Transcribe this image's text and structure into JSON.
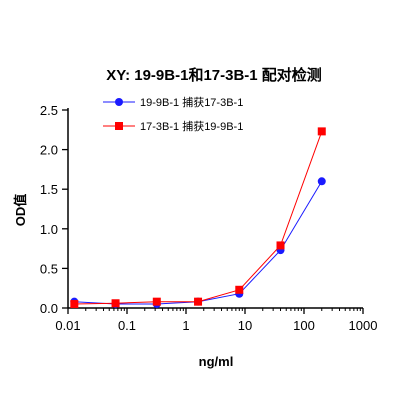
{
  "chart_data": {
    "type": "line",
    "title": "XY: 19-9B-1和17-3B-1 配对检测",
    "xlabel": "ng/ml",
    "ylabel": "OD值",
    "x_scale": "log",
    "xlim": [
      0.01,
      1000
    ],
    "ylim": [
      0,
      2.5
    ],
    "x_ticks": [
      "0.01",
      "0.1",
      "1",
      "10",
      "100",
      "1000"
    ],
    "y_ticks": [
      "0.0",
      "0.5",
      "1.0",
      "1.5",
      "2.0",
      "2.5"
    ],
    "grid": false,
    "legend_position": "top-left",
    "series": [
      {
        "name": "19-9B-1 捕获17-3B-1",
        "color": "#1a1aff",
        "marker": "circle",
        "x": [
          0.0128,
          0.064,
          0.32,
          1.6,
          8,
          40,
          200
        ],
        "y": [
          0.08,
          0.05,
          0.05,
          0.08,
          0.18,
          0.73,
          1.6
        ]
      },
      {
        "name": "17-3B-1 捕获19-9B-1",
        "color": "#ff0000",
        "marker": "square",
        "x": [
          0.0128,
          0.064,
          0.32,
          1.6,
          8,
          40,
          200
        ],
        "y": [
          0.05,
          0.06,
          0.08,
          0.08,
          0.23,
          0.79,
          2.23
        ]
      }
    ]
  }
}
